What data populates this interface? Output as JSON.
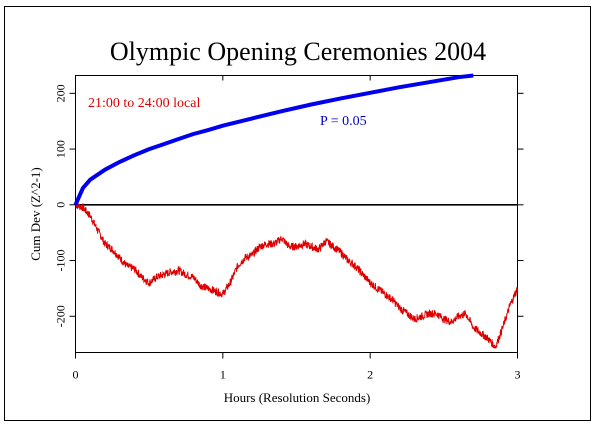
{
  "chart_data": {
    "type": "line",
    "title": "Olympic Opening Ceremonies 2004",
    "xlabel": "Hours (Resolution Seconds)",
    "ylabel": "Cum Dev (Z^2-1)",
    "xlim": [
      0,
      3
    ],
    "ylim": [
      -265,
      232
    ],
    "x_ticks": [
      0,
      1,
      2,
      3
    ],
    "y_ticks": [
      -200,
      -100,
      0,
      100,
      200
    ],
    "grid": false,
    "annotations": [
      {
        "text": "21:00 to 24:00 local",
        "color": "#dd0000"
      },
      {
        "text": "P = 0.05",
        "color": "#0000cc"
      }
    ],
    "series": [
      {
        "color": "#dd0000",
        "x": [
          0,
          0.05,
          0.1,
          0.15,
          0.2,
          0.25,
          0.3,
          0.35,
          0.4,
          0.45,
          0.5,
          0.55,
          0.6,
          0.65,
          0.7,
          0.75,
          0.8,
          0.85,
          0.9,
          0.95,
          1.0,
          1.05,
          1.1,
          1.15,
          1.2,
          1.25,
          1.3,
          1.35,
          1.4,
          1.45,
          1.5,
          1.55,
          1.6,
          1.65,
          1.7,
          1.75,
          1.8,
          1.85,
          1.9,
          1.95,
          2.0,
          2.05,
          2.1,
          2.15,
          2.2,
          2.25,
          2.3,
          2.35,
          2.4,
          2.45,
          2.5,
          2.55,
          2.6,
          2.65,
          2.7,
          2.75,
          2.8,
          2.85,
          2.9,
          2.95,
          3.0
        ],
        "y": [
          0,
          -5,
          -20,
          -45,
          -70,
          -80,
          -95,
          -110,
          -115,
          -130,
          -140,
          -130,
          -125,
          -120,
          -118,
          -125,
          -130,
          -145,
          -150,
          -155,
          -160,
          -140,
          -110,
          -95,
          -90,
          -75,
          -70,
          -70,
          -60,
          -75,
          -75,
          -70,
          -75,
          -80,
          -65,
          -75,
          -85,
          -100,
          -110,
          -125,
          -140,
          -150,
          -160,
          -170,
          -185,
          -195,
          -205,
          -200,
          -195,
          -195,
          -205,
          -210,
          -200,
          -195,
          -220,
          -230,
          -240,
          -255,
          -220,
          -180,
          -150
        ]
      },
      {
        "color": "#0000ee",
        "x": [
          0,
          0.05,
          0.1,
          0.2,
          0.3,
          0.4,
          0.5,
          0.6,
          0.7,
          0.8,
          0.9,
          1.0,
          1.2,
          1.4,
          1.6,
          1.8,
          2.0,
          2.2,
          2.4,
          2.6,
          2.7
        ],
        "y": [
          0,
          30,
          45,
          63,
          77,
          89,
          100,
          109,
          118,
          127,
          134,
          142,
          155,
          168,
          180,
          191,
          201,
          211,
          220,
          229,
          232
        ]
      }
    ]
  }
}
